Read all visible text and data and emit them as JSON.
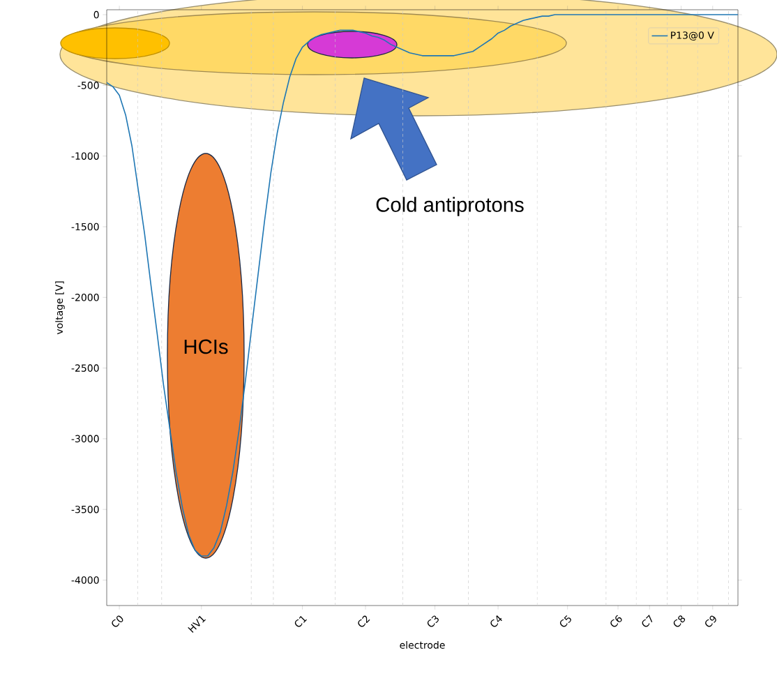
{
  "chart_data": {
    "type": "line",
    "xlabel": "electrode",
    "ylabel": "voltage [V]",
    "categories": [
      null,
      null,
      "C0",
      null,
      null,
      null,
      null,
      null,
      null,
      null,
      null,
      null,
      null,
      null,
      null,
      "HV1",
      null,
      null,
      null,
      null,
      null,
      null,
      null,
      null,
      null,
      null,
      null,
      null,
      null,
      null,
      null,
      "C1",
      null,
      null,
      null,
      null,
      null,
      null,
      null,
      null,
      null,
      "C2",
      null,
      null,
      null,
      null,
      null,
      null,
      null,
      null,
      null,
      null,
      "C3",
      null,
      null,
      null,
      null,
      null,
      null,
      null,
      null,
      null,
      "C4",
      null,
      null,
      null,
      null,
      null,
      null,
      null,
      null,
      null,
      null,
      "C5",
      null,
      null,
      null,
      null,
      null,
      null,
      null,
      "C6",
      null,
      null,
      null,
      null,
      "C7",
      null,
      null,
      null,
      null,
      "C8",
      null,
      null,
      null,
      null,
      "C9",
      null,
      null,
      null,
      null
    ],
    "series": [
      {
        "name": "P13@0 V",
        "color": "#1f77b4",
        "values": [
          -480,
          -510,
          -570,
          -710,
          -930,
          -1240,
          -1550,
          -1910,
          -2260,
          -2620,
          -2930,
          -3240,
          -3490,
          -3680,
          -3790,
          -3830,
          -3830,
          -3770,
          -3660,
          -3470,
          -3230,
          -2930,
          -2580,
          -2200,
          -1830,
          -1460,
          -1120,
          -840,
          -620,
          -440,
          -310,
          -230,
          -190,
          -160,
          -140,
          -130,
          -120,
          -110,
          -110,
          -110,
          -120,
          -130,
          -150,
          -160,
          -180,
          -210,
          -230,
          -250,
          -270,
          -280,
          -290,
          -290,
          -290,
          -290,
          -290,
          -290,
          -280,
          -270,
          -260,
          -230,
          -200,
          -170,
          -130,
          -110,
          -80,
          -60,
          -40,
          -30,
          -20,
          -10,
          -10,
          0,
          0,
          0,
          0,
          0,
          0,
          0,
          0,
          0,
          0,
          0,
          0,
          0,
          0,
          0,
          0,
          0,
          0,
          0,
          0,
          0,
          0,
          0,
          0,
          0,
          0,
          0,
          0,
          0,
          0
        ]
      }
    ],
    "ylim": [
      -4180,
      35
    ],
    "yticks": [
      -4000,
      -3500,
      -3000,
      -2500,
      -2000,
      -1500,
      -1000,
      -500,
      0
    ],
    "annotations": [
      "HCIs",
      "Cold antiprotons"
    ],
    "legend": "top right",
    "marker": "none",
    "line_style": "solid"
  }
}
